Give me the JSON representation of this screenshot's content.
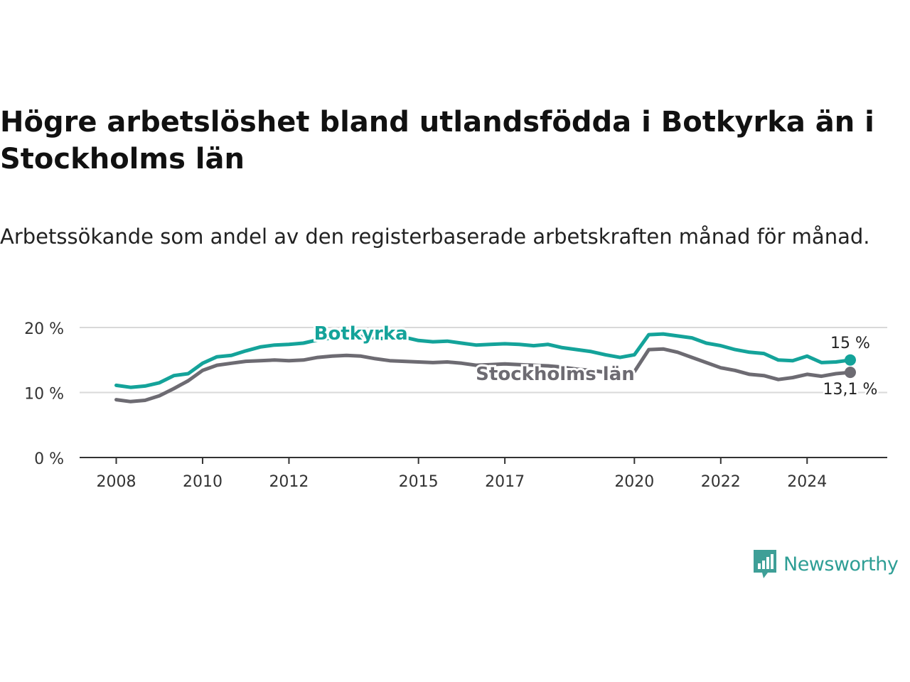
{
  "title": "Högre arbetslöshet bland utlandsfödda i Botkyrka än i Stockholms län",
  "subtitle": "Arbetssökande som andel av den registerbaserade arbetskraften månad för månad.",
  "brand": {
    "name": "Newsworthy",
    "icon": "newsworthy-logo-icon",
    "color": "#3e9f97"
  },
  "colors": {
    "botkyrka": "#14a39a",
    "stockholm": "#6d6b72",
    "grid": "#d9d9d9",
    "axis": "#333333"
  },
  "chart_data": {
    "type": "line",
    "x_type": "date",
    "y_unit": "%",
    "ylim": [
      0,
      20
    ],
    "y_ticks": [
      {
        "value": 0,
        "label": "0 %"
      },
      {
        "value": 10,
        "label": "10 %"
      },
      {
        "value": 20,
        "label": "20 %"
      }
    ],
    "x_ticks": [
      {
        "value": "2008-01",
        "label": "2008"
      },
      {
        "value": "2010-01",
        "label": "2010"
      },
      {
        "value": "2012-01",
        "label": "2012"
      },
      {
        "value": "2015-01",
        "label": "2015"
      },
      {
        "value": "2017-01",
        "label": "2017"
      },
      {
        "value": "2020-01",
        "label": "2020"
      },
      {
        "value": "2022-01",
        "label": "2022"
      },
      {
        "value": "2024-01",
        "label": "2024"
      }
    ],
    "x_range": [
      "2008-01",
      "2025-12"
    ],
    "grid": true,
    "series": [
      {
        "name": "Botkyrka",
        "color": "#14a39a",
        "end_label": "15 %",
        "points": [
          [
            "2008-01",
            11.1
          ],
          [
            "2008-05",
            10.8
          ],
          [
            "2008-09",
            11.0
          ],
          [
            "2009-01",
            11.5
          ],
          [
            "2009-05",
            12.6
          ],
          [
            "2009-09",
            12.9
          ],
          [
            "2010-01",
            14.5
          ],
          [
            "2010-05",
            15.5
          ],
          [
            "2010-09",
            15.7
          ],
          [
            "2011-01",
            16.4
          ],
          [
            "2011-05",
            17.0
          ],
          [
            "2011-09",
            17.3
          ],
          [
            "2012-01",
            17.4
          ],
          [
            "2012-05",
            17.6
          ],
          [
            "2012-09",
            18.1
          ],
          [
            "2013-01",
            18.4
          ],
          [
            "2013-05",
            18.5
          ],
          [
            "2013-09",
            18.6
          ],
          [
            "2014-01",
            18.4
          ],
          [
            "2014-05",
            18.2
          ],
          [
            "2014-09",
            18.5
          ],
          [
            "2015-01",
            18.0
          ],
          [
            "2015-05",
            17.8
          ],
          [
            "2015-09",
            17.9
          ],
          [
            "2016-01",
            17.6
          ],
          [
            "2016-05",
            17.3
          ],
          [
            "2016-09",
            17.4
          ],
          [
            "2017-01",
            17.5
          ],
          [
            "2017-05",
            17.4
          ],
          [
            "2017-09",
            17.2
          ],
          [
            "2018-01",
            17.4
          ],
          [
            "2018-05",
            16.9
          ],
          [
            "2018-09",
            16.6
          ],
          [
            "2019-01",
            16.3
          ],
          [
            "2019-05",
            15.8
          ],
          [
            "2019-09",
            15.4
          ],
          [
            "2020-01",
            15.8
          ],
          [
            "2020-05",
            18.9
          ],
          [
            "2020-09",
            19.0
          ],
          [
            "2021-01",
            18.7
          ],
          [
            "2021-05",
            18.4
          ],
          [
            "2021-09",
            17.6
          ],
          [
            "2022-01",
            17.2
          ],
          [
            "2022-05",
            16.6
          ],
          [
            "2022-09",
            16.2
          ],
          [
            "2023-01",
            16.0
          ],
          [
            "2023-05",
            15.0
          ],
          [
            "2023-09",
            14.9
          ],
          [
            "2024-01",
            15.6
          ],
          [
            "2024-05",
            14.6
          ],
          [
            "2024-09",
            14.7
          ],
          [
            "2025-01",
            15.0
          ]
        ]
      },
      {
        "name": "Stockholms län",
        "color": "#6d6b72",
        "end_label": "13,1 %",
        "points": [
          [
            "2008-01",
            8.9
          ],
          [
            "2008-05",
            8.6
          ],
          [
            "2008-09",
            8.8
          ],
          [
            "2009-01",
            9.5
          ],
          [
            "2009-05",
            10.6
          ],
          [
            "2009-09",
            11.8
          ],
          [
            "2010-01",
            13.4
          ],
          [
            "2010-05",
            14.2
          ],
          [
            "2010-09",
            14.5
          ],
          [
            "2011-01",
            14.8
          ],
          [
            "2011-05",
            14.9
          ],
          [
            "2011-09",
            15.0
          ],
          [
            "2012-01",
            14.9
          ],
          [
            "2012-05",
            15.0
          ],
          [
            "2012-09",
            15.4
          ],
          [
            "2013-01",
            15.6
          ],
          [
            "2013-05",
            15.7
          ],
          [
            "2013-09",
            15.6
          ],
          [
            "2014-01",
            15.2
          ],
          [
            "2014-05",
            14.9
          ],
          [
            "2014-09",
            14.8
          ],
          [
            "2015-01",
            14.7
          ],
          [
            "2015-05",
            14.6
          ],
          [
            "2015-09",
            14.7
          ],
          [
            "2016-01",
            14.5
          ],
          [
            "2016-05",
            14.2
          ],
          [
            "2016-09",
            14.3
          ],
          [
            "2017-01",
            14.4
          ],
          [
            "2017-05",
            14.3
          ],
          [
            "2017-09",
            14.2
          ],
          [
            "2018-01",
            14.1
          ],
          [
            "2018-05",
            13.9
          ],
          [
            "2018-09",
            13.6
          ],
          [
            "2019-01",
            13.4
          ],
          [
            "2019-05",
            13.1
          ],
          [
            "2019-09",
            12.9
          ],
          [
            "2020-01",
            13.2
          ],
          [
            "2020-05",
            16.6
          ],
          [
            "2020-09",
            16.7
          ],
          [
            "2021-01",
            16.2
          ],
          [
            "2021-05",
            15.4
          ],
          [
            "2021-09",
            14.6
          ],
          [
            "2022-01",
            13.8
          ],
          [
            "2022-05",
            13.4
          ],
          [
            "2022-09",
            12.8
          ],
          [
            "2023-01",
            12.6
          ],
          [
            "2023-05",
            12.0
          ],
          [
            "2023-09",
            12.3
          ],
          [
            "2024-01",
            12.8
          ],
          [
            "2024-05",
            12.5
          ],
          [
            "2024-09",
            12.9
          ],
          [
            "2025-01",
            13.1
          ]
        ]
      }
    ],
    "annotations": [
      {
        "series": "Botkyrka",
        "text": "Botkyrka",
        "at": "2013-09",
        "value": 19.1
      },
      {
        "series": "Stockholms län",
        "text": "Stockholms län",
        "at": "2018-03",
        "value": 12.9
      }
    ]
  }
}
